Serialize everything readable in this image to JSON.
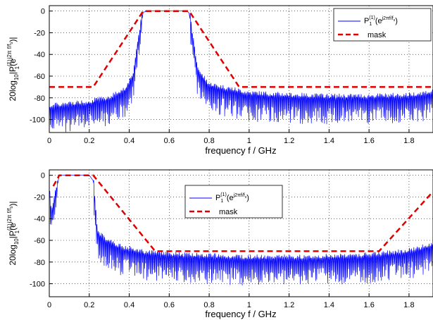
{
  "chart_data": [
    {
      "type": "line",
      "xlabel": "frequency f / GHz",
      "ylabel": "20log10|P1(1)(e^(j2π f/fs))|",
      "xlim": [
        0,
        1.92
      ],
      "ylim": [
        -112,
        5
      ],
      "xticks": [
        "0",
        "0.2",
        "0.4",
        "0.6",
        "0.8",
        "1",
        "1.2",
        "1.4",
        "1.6",
        "1.8"
      ],
      "yticks": [
        "0",
        "-20",
        "-40",
        "-60",
        "-80",
        "-100"
      ],
      "grid": true,
      "legend_position": "top-right",
      "series": [
        {
          "name": "P1(1)(e^(j2πf/fs))",
          "color": "#0000ff",
          "style": "solid",
          "envelope_x": [
            0,
            0.1,
            0.2,
            0.3,
            0.38,
            0.42,
            0.44,
            0.47,
            0.5,
            0.6,
            0.69,
            0.7,
            0.72,
            0.74,
            0.76,
            0.8,
            0.9,
            1.0,
            1.2,
            1.4,
            1.6,
            1.8,
            1.92
          ],
          "envelope_y": [
            -92,
            -90,
            -88,
            -84,
            -76,
            -62,
            -35,
            -1,
            0,
            0,
            0,
            -2,
            -30,
            -55,
            -63,
            -72,
            -76,
            -80,
            -82,
            -83,
            -83,
            -82,
            -79
          ]
        },
        {
          "name": "mask",
          "color": "#e00000",
          "style": "dashed",
          "x": [
            0,
            0.22,
            0.47,
            0.7,
            0.95,
            1.92
          ],
          "y": [
            -70,
            -70,
            0,
            0,
            -70,
            -70
          ]
        }
      ]
    },
    {
      "type": "line",
      "xlabel": "frequency f / GHz",
      "ylabel": "20log10|P1(1)(e^(j2π f/fs))|",
      "xlim": [
        0,
        1.92
      ],
      "ylim": [
        -112,
        5
      ],
      "xticks": [
        "0",
        "0.2",
        "0.4",
        "0.6",
        "0.8",
        "1",
        "1.2",
        "1.4",
        "1.6",
        "1.8"
      ],
      "yticks": [
        "0",
        "-20",
        "-40",
        "-60",
        "-80",
        "-100"
      ],
      "grid": true,
      "legend_position": "top-center",
      "series": [
        {
          "name": "P1(1)(e^(j2πf/fs))",
          "color": "#0000ff",
          "style": "solid",
          "envelope_x": [
            0,
            0.01,
            0.03,
            0.05,
            0.1,
            0.2,
            0.22,
            0.23,
            0.24,
            0.27,
            0.35,
            0.5,
            0.7,
            1.0,
            1.3,
            1.6,
            1.8,
            1.92
          ],
          "envelope_y": [
            -12,
            -40,
            -20,
            0,
            0,
            0,
            -5,
            -30,
            -55,
            -62,
            -70,
            -76,
            -78,
            -80,
            -80,
            -78,
            -74,
            -68
          ]
        },
        {
          "name": "mask",
          "color": "#e00000",
          "style": "dashed",
          "x": [
            0.02,
            0.05,
            0.22,
            0.53,
            1.65,
            1.92
          ],
          "y": [
            -10,
            0,
            0,
            -70,
            -70,
            -15
          ]
        }
      ]
    }
  ],
  "legend": {
    "top": {
      "series_label_main": "P",
      "series_label_sub": "1",
      "series_label_sup": "(1)",
      "series_label_tail": "(e",
      "series_label_exp": "j2πf/f",
      "series_label_exp_sub": "s",
      "series_label_close": ")",
      "mask_label": "mask"
    },
    "bottom": {
      "series_label_main": "P",
      "series_label_sub": "1",
      "series_label_sup": "(1)",
      "series_label_tail": "(e",
      "series_label_exp": "j2πf/f",
      "series_label_exp_sub": "s",
      "series_label_close": ")",
      "mask_label": "mask"
    }
  },
  "ylabel_parts": {
    "pre": "20log",
    "sub10": "10",
    "bar": "|P",
    "sup1": "(1)",
    "sub1": "1",
    "mid": "(e",
    "exp": "j2π f/f",
    "expsub": "s",
    "close": ")|"
  }
}
